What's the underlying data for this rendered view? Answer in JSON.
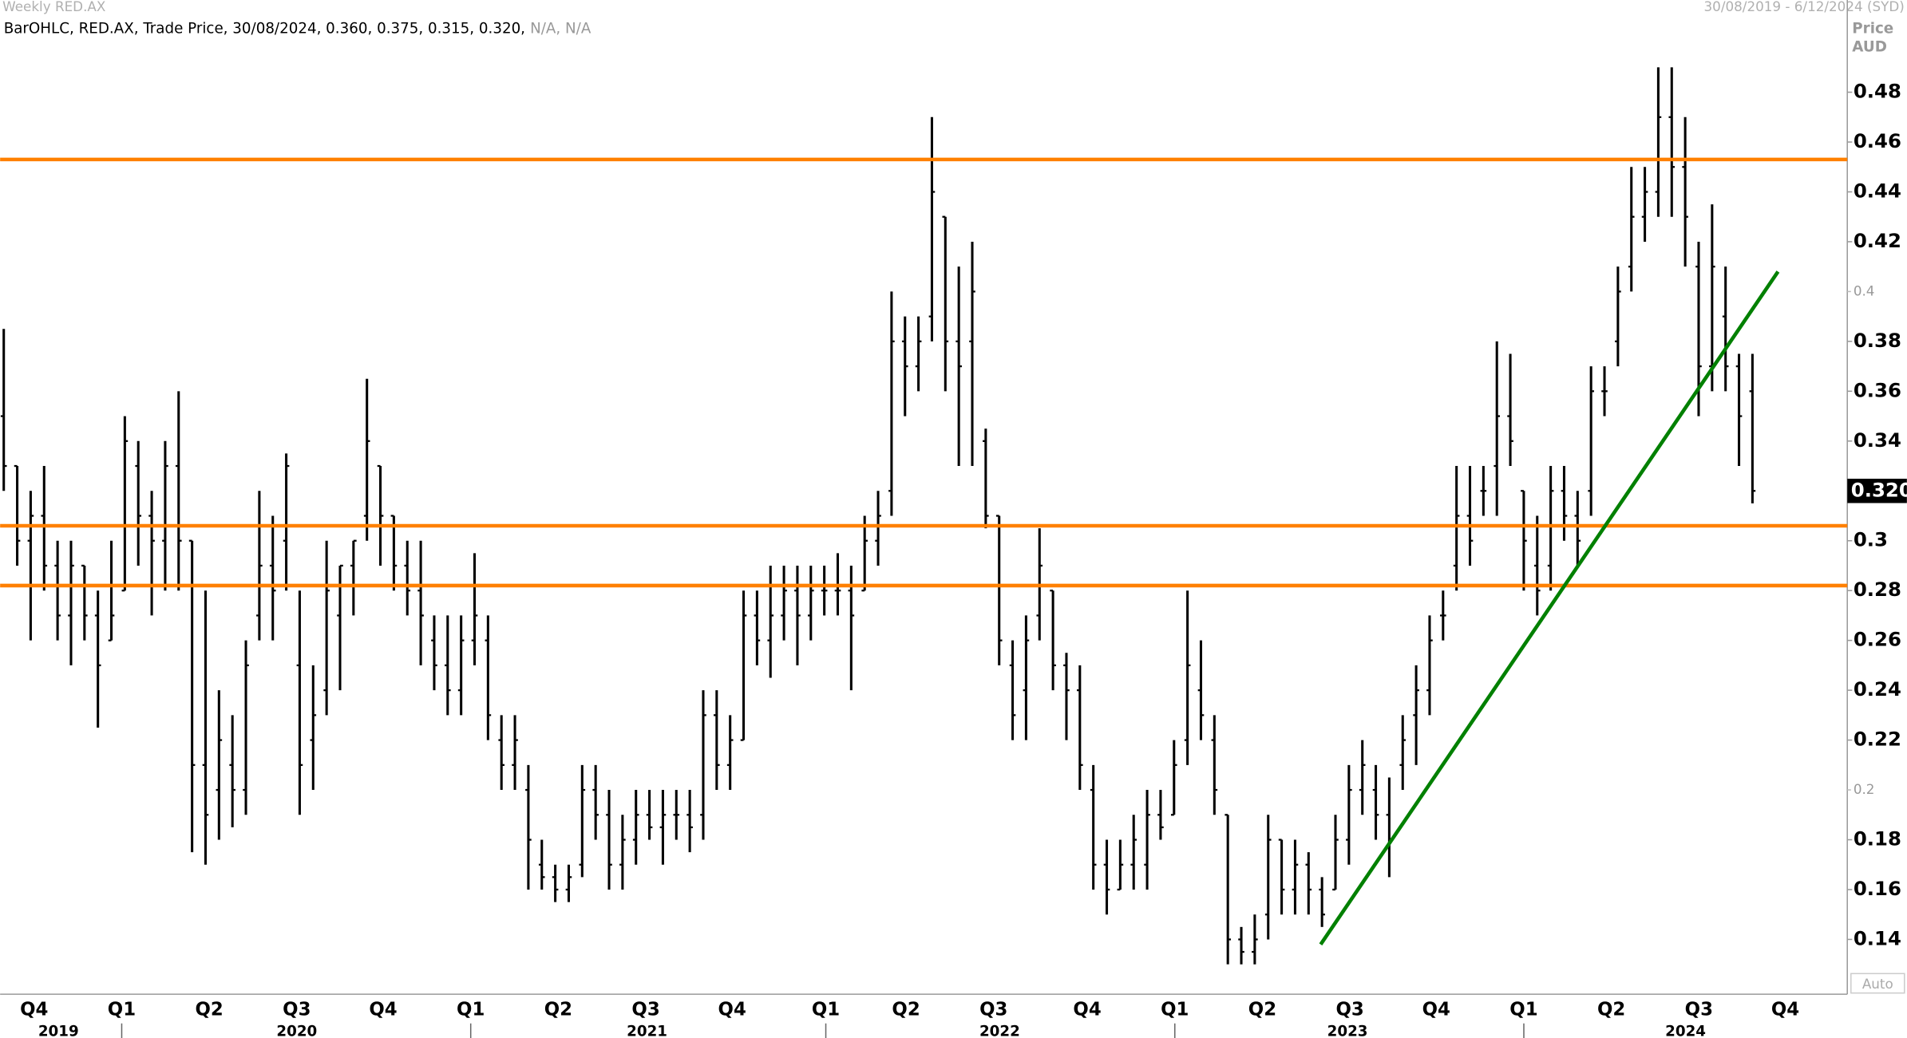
{
  "header": {
    "title": "Weekly RED.AX",
    "date_range": "30/08/2019 - 6/12/2024 (SYD)",
    "info": "BarOHLC, RED.AX, Trade Price, 30/08/2024, 0.360, 0.375, 0.315, 0.320,",
    "info_na": "N/A, N/A"
  },
  "chart_data": {
    "type": "ohlc",
    "y_axis_label": "Price",
    "y_axis_unit": "AUD",
    "scale_mode": "Auto",
    "quarters": [
      "Q4",
      "Q1",
      "Q2",
      "Q3",
      "Q4",
      "Q1",
      "Q2",
      "Q3",
      "Q4",
      "Q1",
      "Q2",
      "Q3",
      "Q4",
      "Q1",
      "Q2",
      "Q3",
      "Q4",
      "Q1",
      "Q2",
      "Q3",
      "Q4"
    ],
    "years": [
      "2019",
      "2020",
      "2021",
      "2022",
      "2023",
      "2024"
    ],
    "ylim": [
      0.118,
      0.517
    ],
    "yticks": [
      0.14,
      0.16,
      0.18,
      0.22,
      0.24,
      0.26,
      0.28,
      0.3,
      0.32,
      0.34,
      0.36,
      0.38,
      0.42,
      0.44,
      0.46,
      0.48
    ],
    "yticks_minor": [
      0.2,
      0.4
    ],
    "last_price": {
      "value": 0.32,
      "label": "0.320"
    },
    "series": [
      {
        "name": "RED.AX",
        "color": "#000000",
        "open": [
          0.35,
          0.33,
          0.3,
          0.31,
          0.29,
          0.27,
          0.29,
          0.27,
          0.26,
          0.28,
          0.33,
          0.31,
          0.3,
          0.33,
          0.3,
          0.21,
          0.2,
          0.21,
          0.2,
          0.27,
          0.29,
          0.3,
          0.25,
          0.22,
          0.24,
          0.27,
          0.29,
          0.31,
          0.33,
          0.31,
          0.29,
          0.28,
          0.26,
          0.25,
          0.24,
          0.26,
          0.26,
          0.22,
          0.21,
          0.2,
          0.17,
          0.165,
          0.16,
          0.17,
          0.2,
          0.19,
          0.17,
          0.18,
          0.19,
          0.185,
          0.19,
          0.19,
          0.19,
          0.23,
          0.21,
          0.22,
          0.27,
          0.26,
          0.27,
          0.28,
          0.27,
          0.28,
          0.28,
          0.28,
          0.28,
          0.3,
          0.32,
          0.38,
          0.37,
          0.39,
          0.43,
          0.38,
          0.38,
          0.34,
          0.31,
          0.25,
          0.24,
          0.27,
          0.28,
          0.25,
          0.24,
          0.2,
          0.17,
          0.16,
          0.17,
          0.17,
          0.19,
          0.19,
          0.22,
          0.24,
          0.22,
          0.19,
          0.14,
          0.135,
          0.15,
          0.18,
          0.16,
          0.17,
          0.16,
          0.16,
          0.18,
          0.2,
          0.2,
          0.19,
          0.21,
          0.23,
          0.24,
          0.27,
          0.29,
          0.31,
          0.32,
          0.33,
          0.35,
          0.32,
          0.29,
          0.29,
          0.32,
          0.31,
          0.32,
          0.36,
          0.38,
          0.41,
          0.43,
          0.44,
          0.47,
          0.45,
          0.41,
          0.37,
          0.39,
          0.37,
          0.36
        ],
        "high": [
          0.385,
          0.33,
          0.32,
          0.33,
          0.3,
          0.3,
          0.29,
          0.28,
          0.3,
          0.35,
          0.34,
          0.32,
          0.34,
          0.36,
          0.3,
          0.28,
          0.24,
          0.23,
          0.26,
          0.32,
          0.31,
          0.335,
          0.28,
          0.25,
          0.3,
          0.29,
          0.3,
          0.365,
          0.33,
          0.31,
          0.3,
          0.3,
          0.27,
          0.27,
          0.27,
          0.295,
          0.27,
          0.23,
          0.23,
          0.21,
          0.18,
          0.17,
          0.17,
          0.21,
          0.21,
          0.2,
          0.19,
          0.2,
          0.2,
          0.2,
          0.2,
          0.2,
          0.24,
          0.24,
          0.23,
          0.28,
          0.28,
          0.29,
          0.29,
          0.29,
          0.29,
          0.29,
          0.295,
          0.29,
          0.31,
          0.32,
          0.4,
          0.39,
          0.39,
          0.47,
          0.43,
          0.41,
          0.42,
          0.345,
          0.31,
          0.26,
          0.27,
          0.305,
          0.28,
          0.255,
          0.25,
          0.21,
          0.18,
          0.18,
          0.19,
          0.2,
          0.2,
          0.22,
          0.28,
          0.26,
          0.23,
          0.19,
          0.145,
          0.15,
          0.19,
          0.18,
          0.18,
          0.175,
          0.165,
          0.19,
          0.21,
          0.22,
          0.21,
          0.205,
          0.23,
          0.25,
          0.27,
          0.28,
          0.33,
          0.33,
          0.33,
          0.38,
          0.375,
          0.32,
          0.31,
          0.33,
          0.33,
          0.32,
          0.37,
          0.37,
          0.41,
          0.45,
          0.45,
          0.49,
          0.49,
          0.47,
          0.42,
          0.435,
          0.41,
          0.375,
          0.375
        ],
        "low": [
          0.32,
          0.29,
          0.26,
          0.28,
          0.26,
          0.25,
          0.26,
          0.225,
          0.26,
          0.28,
          0.29,
          0.27,
          0.28,
          0.28,
          0.175,
          0.17,
          0.18,
          0.185,
          0.19,
          0.26,
          0.26,
          0.28,
          0.19,
          0.2,
          0.23,
          0.24,
          0.27,
          0.3,
          0.29,
          0.28,
          0.27,
          0.25,
          0.24,
          0.23,
          0.23,
          0.25,
          0.22,
          0.2,
          0.2,
          0.16,
          0.16,
          0.155,
          0.155,
          0.165,
          0.18,
          0.16,
          0.16,
          0.17,
          0.18,
          0.17,
          0.18,
          0.175,
          0.18,
          0.2,
          0.2,
          0.22,
          0.25,
          0.245,
          0.26,
          0.25,
          0.26,
          0.27,
          0.27,
          0.24,
          0.28,
          0.29,
          0.31,
          0.35,
          0.36,
          0.38,
          0.36,
          0.33,
          0.33,
          0.305,
          0.25,
          0.22,
          0.22,
          0.26,
          0.24,
          0.22,
          0.2,
          0.16,
          0.15,
          0.16,
          0.16,
          0.16,
          0.18,
          0.19,
          0.21,
          0.22,
          0.19,
          0.13,
          0.13,
          0.13,
          0.14,
          0.15,
          0.15,
          0.15,
          0.145,
          0.16,
          0.17,
          0.19,
          0.18,
          0.165,
          0.2,
          0.21,
          0.23,
          0.26,
          0.28,
          0.29,
          0.31,
          0.31,
          0.33,
          0.28,
          0.27,
          0.28,
          0.3,
          0.29,
          0.31,
          0.35,
          0.37,
          0.4,
          0.42,
          0.43,
          0.43,
          0.41,
          0.35,
          0.36,
          0.36,
          0.33,
          0.315
        ],
        "close": [
          0.33,
          0.3,
          0.31,
          0.29,
          0.27,
          0.29,
          0.27,
          0.25,
          0.27,
          0.34,
          0.31,
          0.3,
          0.33,
          0.3,
          0.21,
          0.19,
          0.22,
          0.2,
          0.25,
          0.29,
          0.28,
          0.33,
          0.21,
          0.23,
          0.28,
          0.29,
          0.3,
          0.34,
          0.31,
          0.29,
          0.28,
          0.27,
          0.25,
          0.24,
          0.26,
          0.27,
          0.23,
          0.21,
          0.22,
          0.18,
          0.165,
          0.16,
          0.165,
          0.2,
          0.19,
          0.17,
          0.18,
          0.19,
          0.185,
          0.19,
          0.19,
          0.185,
          0.23,
          0.21,
          0.22,
          0.27,
          0.26,
          0.27,
          0.28,
          0.27,
          0.28,
          0.28,
          0.28,
          0.27,
          0.3,
          0.31,
          0.38,
          0.37,
          0.38,
          0.44,
          0.38,
          0.37,
          0.4,
          0.31,
          0.26,
          0.23,
          0.26,
          0.29,
          0.25,
          0.24,
          0.21,
          0.17,
          0.16,
          0.17,
          0.18,
          0.19,
          0.185,
          0.21,
          0.25,
          0.23,
          0.2,
          0.14,
          0.135,
          0.14,
          0.18,
          0.16,
          0.17,
          0.16,
          0.15,
          0.18,
          0.2,
          0.21,
          0.19,
          0.18,
          0.22,
          0.24,
          0.26,
          0.27,
          0.31,
          0.3,
          0.32,
          0.35,
          0.34,
          0.3,
          0.28,
          0.32,
          0.31,
          0.3,
          0.36,
          0.36,
          0.4,
          0.43,
          0.44,
          0.47,
          0.45,
          0.43,
          0.37,
          0.41,
          0.37,
          0.35,
          0.32
        ]
      }
    ],
    "hlines": [
      {
        "value": 0.453,
        "color": "#ff8000"
      },
      {
        "value": 0.306,
        "color": "#ff8000"
      },
      {
        "value": 0.282,
        "color": "#ff8000"
      }
    ],
    "trendline": {
      "color": "#008000",
      "start": [
        97.9,
        0.138
      ],
      "end": [
        131.9,
        0.408
      ]
    }
  }
}
